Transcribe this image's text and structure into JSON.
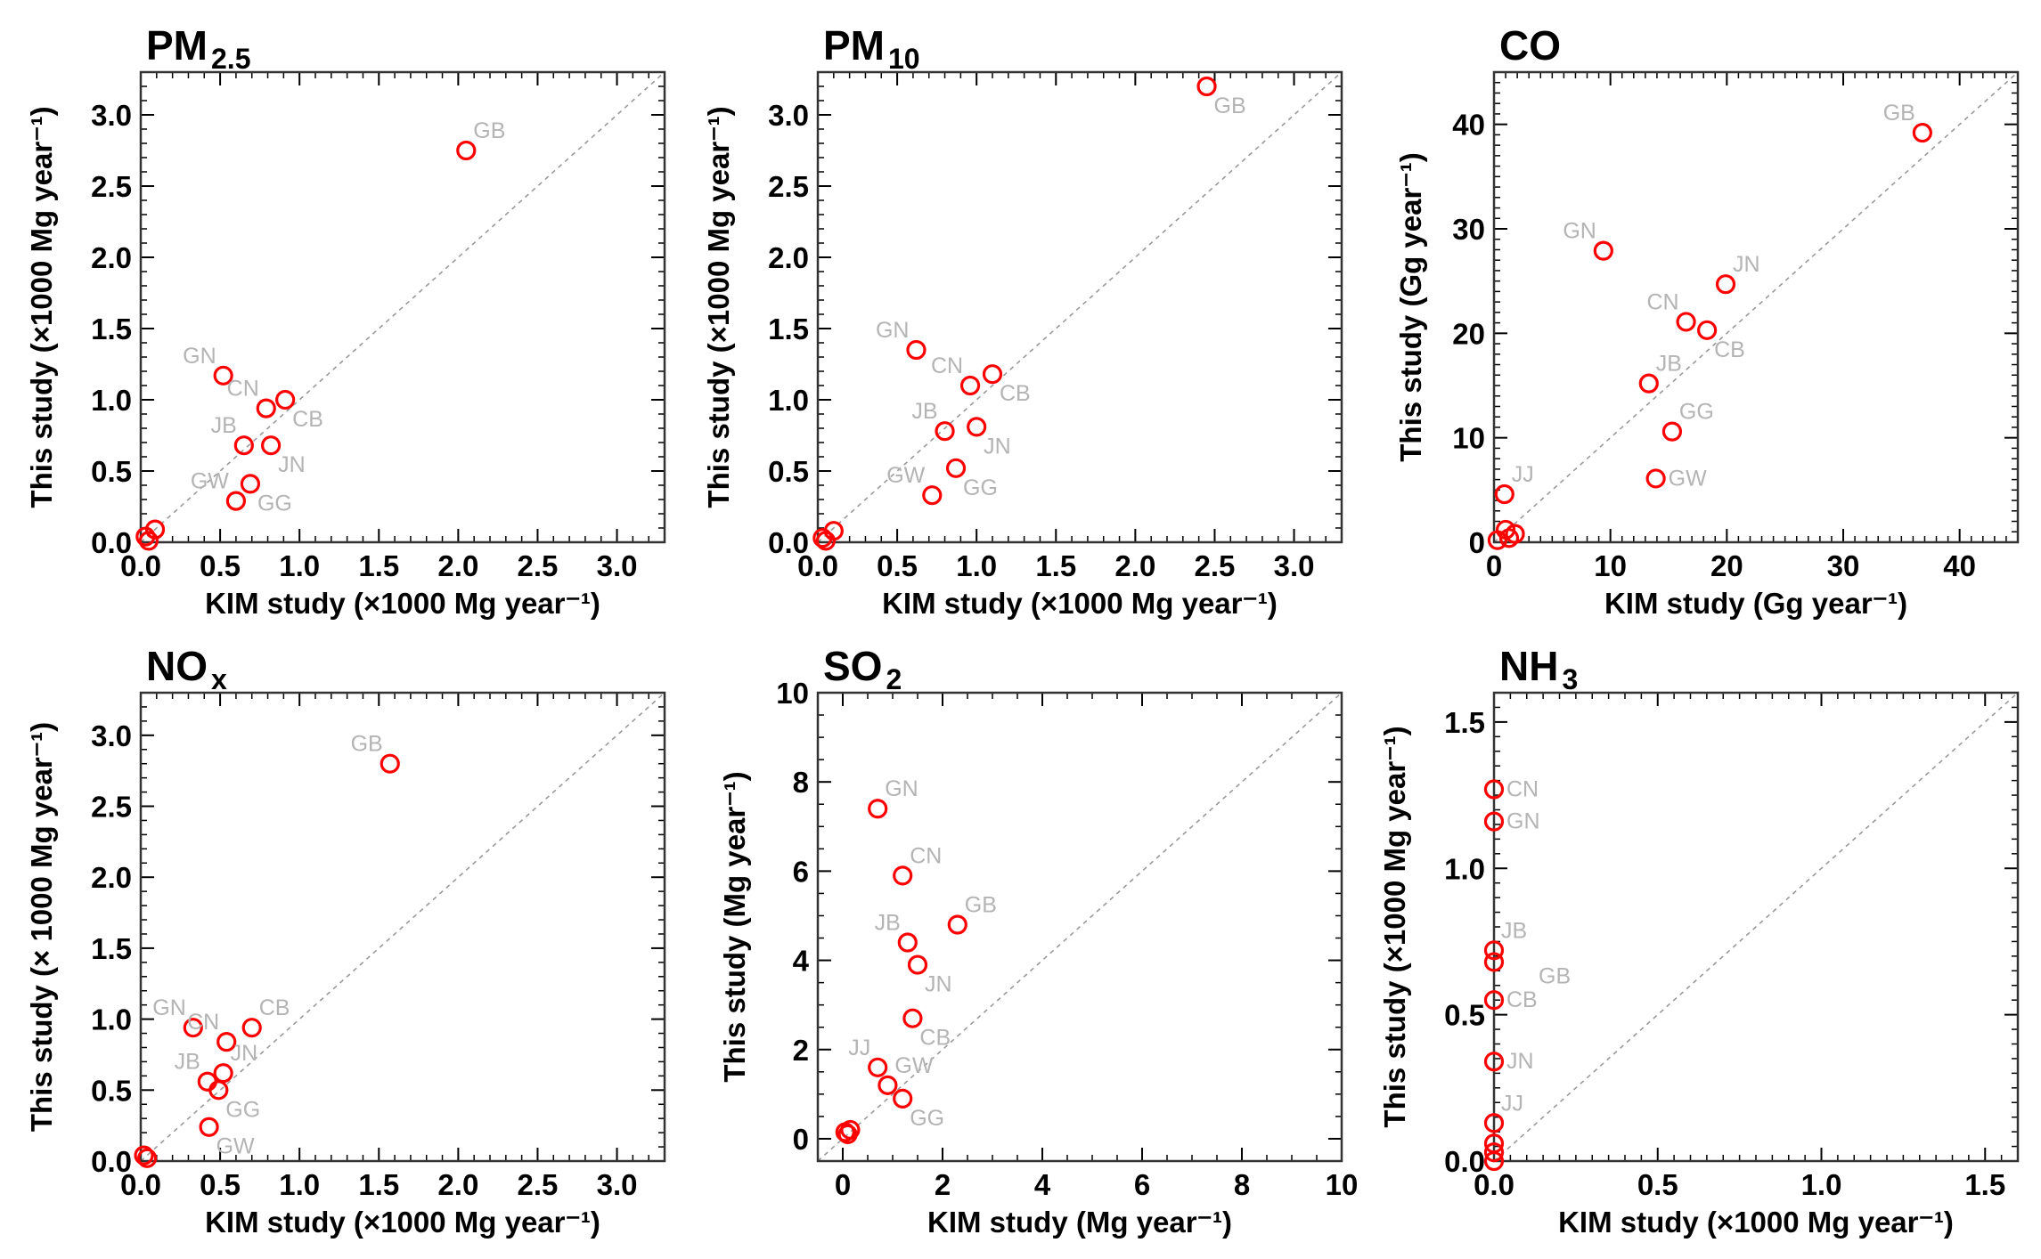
{
  "colors": {
    "marker": "#ff0000",
    "label": "#b4b4b4",
    "diagonal": "#999999",
    "axis": "#000000"
  },
  "chart_data": [
    {
      "type": "scatter",
      "title": "PM",
      "title_sub": "2.5",
      "xlabel": "KIM study (×1000 Mg year⁻¹)",
      "ylabel": "This study (×1000 Mg year⁻¹)",
      "xlim": [
        0,
        3.3
      ],
      "ylim": [
        0,
        3.3
      ],
      "ticks": [
        0,
        0.5,
        1.0,
        1.5,
        2.0,
        2.5,
        3.0
      ],
      "tick_labels": [
        "0.0",
        "0.5",
        "1.0",
        "1.5",
        "2.0",
        "2.5",
        "3.0"
      ],
      "minor": 0.1,
      "diagonal": "1:1 dashed",
      "points": [
        {
          "x": 2.05,
          "y": 2.75,
          "label": "GB",
          "pos": "upper-right"
        },
        {
          "x": 0.52,
          "y": 1.17,
          "label": "GN",
          "pos": "upper-left"
        },
        {
          "x": 0.79,
          "y": 0.94,
          "label": "CN",
          "pos": "upper-left"
        },
        {
          "x": 0.91,
          "y": 1.0,
          "label": "CB",
          "pos": "lower-right"
        },
        {
          "x": 0.65,
          "y": 0.68,
          "label": "JB",
          "pos": "upper-left"
        },
        {
          "x": 0.82,
          "y": 0.68,
          "label": "JN",
          "pos": "lower-right"
        },
        {
          "x": 0.69,
          "y": 0.41,
          "label": "GG",
          "pos": "lower-right"
        },
        {
          "x": 0.6,
          "y": 0.29,
          "label": "GW",
          "pos": "upper-left"
        },
        {
          "x": 0.09,
          "y": 0.09,
          "label": "",
          "pos": "none"
        },
        {
          "x": 0.03,
          "y": 0.04,
          "label": "",
          "pos": "none"
        },
        {
          "x": 0.05,
          "y": 0.01,
          "label": "",
          "pos": "none"
        }
      ]
    },
    {
      "type": "scatter",
      "title": "PM",
      "title_sub": "10",
      "xlabel": "KIM study (×1000 Mg year⁻¹)",
      "ylabel": "This study (×1000 Mg year⁻¹)",
      "xlim": [
        0,
        3.3
      ],
      "ylim": [
        0,
        3.3
      ],
      "ticks": [
        0,
        0.5,
        1.0,
        1.5,
        2.0,
        2.5,
        3.0
      ],
      "tick_labels": [
        "0.0",
        "0.5",
        "1.0",
        "1.5",
        "2.0",
        "2.5",
        "3.0"
      ],
      "minor": 0.1,
      "diagonal": "1:1 dashed",
      "points": [
        {
          "x": 2.45,
          "y": 3.2,
          "label": "GB",
          "pos": "lower-right"
        },
        {
          "x": 0.62,
          "y": 1.35,
          "label": "GN",
          "pos": "upper-left"
        },
        {
          "x": 0.96,
          "y": 1.1,
          "label": "CN",
          "pos": "upper-left"
        },
        {
          "x": 1.1,
          "y": 1.18,
          "label": "CB",
          "pos": "lower-right"
        },
        {
          "x": 0.8,
          "y": 0.78,
          "label": "JB",
          "pos": "upper-left"
        },
        {
          "x": 1.0,
          "y": 0.81,
          "label": "JN",
          "pos": "lower-right"
        },
        {
          "x": 0.87,
          "y": 0.52,
          "label": "GG",
          "pos": "lower-right"
        },
        {
          "x": 0.72,
          "y": 0.33,
          "label": "GW",
          "pos": "upper-left"
        },
        {
          "x": 0.1,
          "y": 0.08,
          "label": "",
          "pos": "none"
        },
        {
          "x": 0.03,
          "y": 0.03,
          "label": "",
          "pos": "none"
        },
        {
          "x": 0.05,
          "y": 0.01,
          "label": "",
          "pos": "none"
        }
      ]
    },
    {
      "type": "scatter",
      "title": "CO",
      "title_sub": "",
      "xlabel": "KIM study (Gg year⁻¹)",
      "ylabel": "This study (Gg year⁻¹)",
      "xlim": [
        0,
        45
      ],
      "ylim": [
        0,
        45
      ],
      "ticks": [
        0,
        10,
        20,
        30,
        40
      ],
      "tick_labels": [
        "0",
        "10",
        "20",
        "30",
        "40"
      ],
      "minor": 1,
      "diagonal": "1:1 dashed",
      "points": [
        {
          "x": 36.8,
          "y": 39.2,
          "label": "GB",
          "pos": "upper-left"
        },
        {
          "x": 9.4,
          "y": 27.9,
          "label": "GN",
          "pos": "upper-left"
        },
        {
          "x": 19.9,
          "y": 24.7,
          "label": "JN",
          "pos": "upper-right"
        },
        {
          "x": 16.5,
          "y": 21.1,
          "label": "CN",
          "pos": "upper-left"
        },
        {
          "x": 18.3,
          "y": 20.3,
          "label": "CB",
          "pos": "lower-right"
        },
        {
          "x": 13.3,
          "y": 15.2,
          "label": "JB",
          "pos": "upper-right"
        },
        {
          "x": 15.3,
          "y": 10.6,
          "label": "GG",
          "pos": "upper-right"
        },
        {
          "x": 13.9,
          "y": 6.1,
          "label": "GW",
          "pos": "right"
        },
        {
          "x": 0.9,
          "y": 4.6,
          "label": "JJ",
          "pos": "upper-right"
        },
        {
          "x": 1.0,
          "y": 1.2,
          "label": "",
          "pos": "none"
        },
        {
          "x": 1.8,
          "y": 0.8,
          "label": "",
          "pos": "none"
        },
        {
          "x": 1.3,
          "y": 0.4,
          "label": "",
          "pos": "none"
        },
        {
          "x": 0.3,
          "y": 0.2,
          "label": "",
          "pos": "none"
        }
      ]
    },
    {
      "type": "scatter",
      "title": "NO",
      "title_sub": "x",
      "xlabel": "KIM study (×1000 Mg year⁻¹)",
      "ylabel": "This study (× 1000 Mg year⁻¹)",
      "xlim": [
        0,
        3.3
      ],
      "ylim": [
        0,
        3.3
      ],
      "ticks": [
        0,
        0.5,
        1.0,
        1.5,
        2.0,
        2.5,
        3.0
      ],
      "tick_labels": [
        "0.0",
        "0.5",
        "1.0",
        "1.5",
        "2.0",
        "2.5",
        "3.0"
      ],
      "minor": 0.1,
      "diagonal": "1:1 dashed",
      "points": [
        {
          "x": 1.57,
          "y": 2.8,
          "label": "GB",
          "pos": "upper-left"
        },
        {
          "x": 0.33,
          "y": 0.94,
          "label": "GN",
          "pos": "upper-left"
        },
        {
          "x": 0.54,
          "y": 0.84,
          "label": "CN",
          "pos": "upper-left"
        },
        {
          "x": 0.7,
          "y": 0.94,
          "label": "CB",
          "pos": "upper-right"
        },
        {
          "x": 0.52,
          "y": 0.62,
          "label": "JN",
          "pos": "upper-right"
        },
        {
          "x": 0.42,
          "y": 0.56,
          "label": "JB",
          "pos": "upper-left"
        },
        {
          "x": 0.49,
          "y": 0.5,
          "label": "GG",
          "pos": "lower-right"
        },
        {
          "x": 0.43,
          "y": 0.24,
          "label": "GW",
          "pos": "lower-right"
        },
        {
          "x": 0.02,
          "y": 0.04,
          "label": "",
          "pos": "none"
        },
        {
          "x": 0.04,
          "y": 0.02,
          "label": "",
          "pos": "none"
        }
      ]
    },
    {
      "type": "scatter",
      "title": "SO",
      "title_sub": "2",
      "xlabel": "KIM study (Mg year⁻¹)",
      "ylabel": "This study (Mg year⁻¹)",
      "xlim": [
        -0.5,
        10
      ],
      "ylim": [
        -0.5,
        10
      ],
      "ticks": [
        0,
        2,
        4,
        6,
        8,
        10
      ],
      "tick_labels": [
        "0",
        "2",
        "4",
        "6",
        "8",
        "10"
      ],
      "minor": 0.5,
      "diagonal": "1:1 dashed",
      "points": [
        {
          "x": 0.7,
          "y": 7.4,
          "label": "GN",
          "pos": "upper-right"
        },
        {
          "x": 1.2,
          "y": 5.9,
          "label": "CN",
          "pos": "upper-right"
        },
        {
          "x": 2.3,
          "y": 4.8,
          "label": "GB",
          "pos": "upper-right"
        },
        {
          "x": 1.3,
          "y": 4.4,
          "label": "JB",
          "pos": "upper-left"
        },
        {
          "x": 1.5,
          "y": 3.9,
          "label": "JN",
          "pos": "lower-right"
        },
        {
          "x": 1.4,
          "y": 2.7,
          "label": "CB",
          "pos": "lower-right"
        },
        {
          "x": 0.7,
          "y": 1.6,
          "label": "JJ",
          "pos": "upper-left"
        },
        {
          "x": 0.9,
          "y": 1.2,
          "label": "GW",
          "pos": "upper-right"
        },
        {
          "x": 1.2,
          "y": 0.9,
          "label": "GG",
          "pos": "lower-right"
        },
        {
          "x": 0.05,
          "y": 0.15,
          "label": "",
          "pos": "none"
        },
        {
          "x": 0.15,
          "y": 0.2,
          "label": "",
          "pos": "none"
        },
        {
          "x": 0.1,
          "y": 0.1,
          "label": "",
          "pos": "none"
        }
      ]
    },
    {
      "type": "scatter",
      "title": "NH",
      "title_sub": "3",
      "xlabel": "KIM study (×1000 Mg year⁻¹)",
      "ylabel": "This study (×1000 Mg year⁻¹)",
      "xlim": [
        0,
        1.6
      ],
      "ylim": [
        0,
        1.6
      ],
      "ticks": [
        0,
        0.5,
        1.0,
        1.5
      ],
      "tick_labels": [
        "0.0",
        "0.5",
        "1.0",
        "1.5"
      ],
      "minor": 0.05,
      "diagonal": "1:1 dashed",
      "points": [
        {
          "x": 0.0,
          "y": 1.27,
          "label": "CN",
          "pos": "right"
        },
        {
          "x": 0.0,
          "y": 1.16,
          "label": "GN",
          "pos": "right"
        },
        {
          "x": 0.0,
          "y": 0.72,
          "label": "JB",
          "pos": "upper-right"
        },
        {
          "x": 0.0,
          "y": 0.68,
          "label": "GB",
          "pos": "lower-right-far"
        },
        {
          "x": 0.0,
          "y": 0.55,
          "label": "CB",
          "pos": "right"
        },
        {
          "x": 0.0,
          "y": 0.34,
          "label": "JN",
          "pos": "right"
        },
        {
          "x": 0.0,
          "y": 0.13,
          "label": "JJ",
          "pos": "upper-right"
        },
        {
          "x": 0.0,
          "y": 0.06,
          "label": "",
          "pos": "none"
        },
        {
          "x": 0.0,
          "y": 0.03,
          "label": "",
          "pos": "none"
        },
        {
          "x": 0.0,
          "y": 0.0,
          "label": "",
          "pos": "none"
        }
      ]
    }
  ]
}
